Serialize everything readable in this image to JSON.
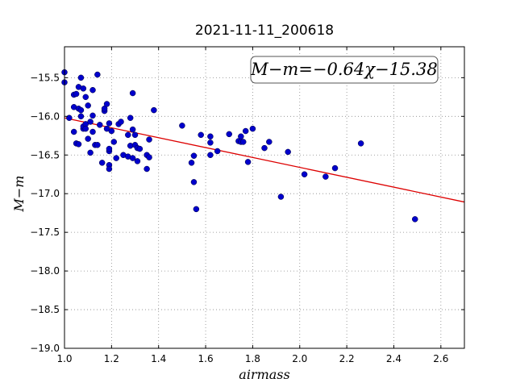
{
  "chart_data": {
    "type": "scatter",
    "title": "2021-11-11_200618",
    "xlabel": "airmass",
    "ylabel": "M−m",
    "xlim": [
      1.0,
      2.7
    ],
    "ylim": [
      -19.0,
      -15.1
    ],
    "xticks": [
      1.0,
      1.2,
      1.4,
      1.6,
      1.8,
      2.0,
      2.2,
      2.4,
      2.6
    ],
    "xtick_labels": [
      "1.0",
      "1.2",
      "1.4",
      "1.6",
      "1.8",
      "2.0",
      "2.2",
      "2.4",
      "2.6"
    ],
    "yticks": [
      -15.5,
      -16.0,
      -16.5,
      -17.0,
      -17.5,
      -18.0,
      -18.5,
      -19.0
    ],
    "ytick_labels": [
      "−15.5",
      "−16.0",
      "−16.5",
      "−17.0",
      "−17.5",
      "−18.0",
      "−18.5",
      "−19.0"
    ],
    "grid": true,
    "annotation": "M−m=−0.64χ−15.38",
    "fit_line": {
      "slope": -0.64,
      "intercept": -15.38,
      "color": "#dd0000"
    },
    "point_color": "#0000cc",
    "points": [
      [
        1.0,
        -15.43
      ],
      [
        1.0,
        -15.56
      ],
      [
        1.02,
        -16.02
      ],
      [
        1.04,
        -15.72
      ],
      [
        1.04,
        -15.88
      ],
      [
        1.04,
        -16.2
      ],
      [
        1.05,
        -15.71
      ],
      [
        1.05,
        -16.35
      ],
      [
        1.06,
        -15.62
      ],
      [
        1.06,
        -15.9
      ],
      [
        1.06,
        -16.36
      ],
      [
        1.07,
        -15.5
      ],
      [
        1.07,
        -16.0
      ],
      [
        1.07,
        -15.92
      ],
      [
        1.08,
        -15.64
      ],
      [
        1.08,
        -16.16
      ],
      [
        1.08,
        -16.13
      ],
      [
        1.09,
        -15.75
      ],
      [
        1.09,
        -16.1
      ],
      [
        1.09,
        -16.16
      ],
      [
        1.1,
        -15.86
      ],
      [
        1.1,
        -16.29
      ],
      [
        1.11,
        -16.47
      ],
      [
        1.11,
        -16.07
      ],
      [
        1.12,
        -15.99
      ],
      [
        1.12,
        -15.66
      ],
      [
        1.12,
        -16.2
      ],
      [
        1.13,
        -16.37
      ],
      [
        1.14,
        -16.37
      ],
      [
        1.14,
        -15.46
      ],
      [
        1.15,
        -16.11
      ],
      [
        1.16,
        -16.6
      ],
      [
        1.17,
        -15.93
      ],
      [
        1.17,
        -15.9
      ],
      [
        1.18,
        -15.84
      ],
      [
        1.18,
        -16.16
      ],
      [
        1.19,
        -16.45
      ],
      [
        1.19,
        -16.42
      ],
      [
        1.19,
        -16.63
      ],
      [
        1.19,
        -16.68
      ],
      [
        1.19,
        -16.09
      ],
      [
        1.2,
        -16.19
      ],
      [
        1.21,
        -16.33
      ],
      [
        1.22,
        -16.54
      ],
      [
        1.23,
        -16.1
      ],
      [
        1.24,
        -16.07
      ],
      [
        1.25,
        -16.5
      ],
      [
        1.27,
        -16.24
      ],
      [
        1.27,
        -16.52
      ],
      [
        1.28,
        -16.02
      ],
      [
        1.28,
        -16.38
      ],
      [
        1.29,
        -16.17
      ],
      [
        1.29,
        -16.54
      ],
      [
        1.29,
        -15.7
      ],
      [
        1.3,
        -16.24
      ],
      [
        1.3,
        -16.37
      ],
      [
        1.31,
        -16.58
      ],
      [
        1.31,
        -16.41
      ],
      [
        1.32,
        -16.42
      ],
      [
        1.35,
        -16.68
      ],
      [
        1.35,
        -16.5
      ],
      [
        1.36,
        -16.3
      ],
      [
        1.36,
        -16.53
      ],
      [
        1.38,
        -15.92
      ],
      [
        1.5,
        -16.12
      ],
      [
        1.54,
        -16.6
      ],
      [
        1.55,
        -16.51
      ],
      [
        1.55,
        -16.85
      ],
      [
        1.56,
        -17.2
      ],
      [
        1.58,
        -16.24
      ],
      [
        1.62,
        -16.26
      ],
      [
        1.62,
        -16.34
      ],
      [
        1.62,
        -16.5
      ],
      [
        1.65,
        -16.45
      ],
      [
        1.7,
        -16.23
      ],
      [
        1.74,
        -16.32
      ],
      [
        1.75,
        -16.33
      ],
      [
        1.75,
        -16.26
      ],
      [
        1.76,
        -16.33
      ],
      [
        1.77,
        -16.19
      ],
      [
        1.78,
        -16.59
      ],
      [
        1.8,
        -16.16
      ],
      [
        1.85,
        -16.41
      ],
      [
        1.87,
        -16.33
      ],
      [
        1.92,
        -17.04
      ],
      [
        1.95,
        -16.46
      ],
      [
        2.02,
        -16.75
      ],
      [
        2.11,
        -16.78
      ],
      [
        2.15,
        -16.67
      ],
      [
        2.26,
        -16.35
      ],
      [
        2.49,
        -17.33
      ]
    ]
  }
}
